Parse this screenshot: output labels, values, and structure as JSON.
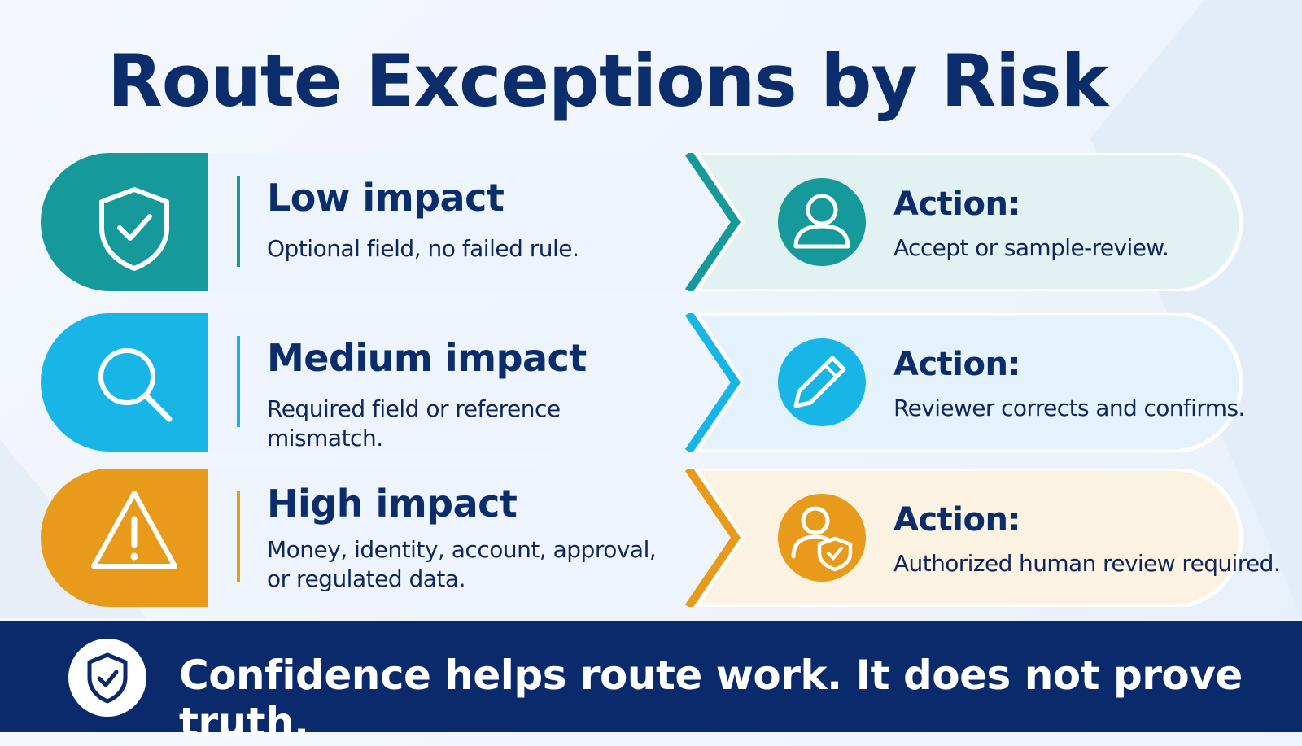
{
  "title": "Route Exceptions by Risk",
  "rows": [
    {
      "label": "Low impact",
      "description": "Optional field, no failed rule.",
      "action_label": "Action:",
      "action": "Accept or sample-review."
    },
    {
      "label": "Medium impact",
      "description": "Required field or reference mismatch.",
      "action_label": "Action:",
      "action": "Reviewer corrects and confirms."
    },
    {
      "label": "High impact",
      "description": "Money, identity, account, approval, or regulated data.",
      "action_label": "Action:",
      "action": "Authorized human review required."
    }
  ],
  "footer": "Confidence helps route work. It does not prove truth."
}
